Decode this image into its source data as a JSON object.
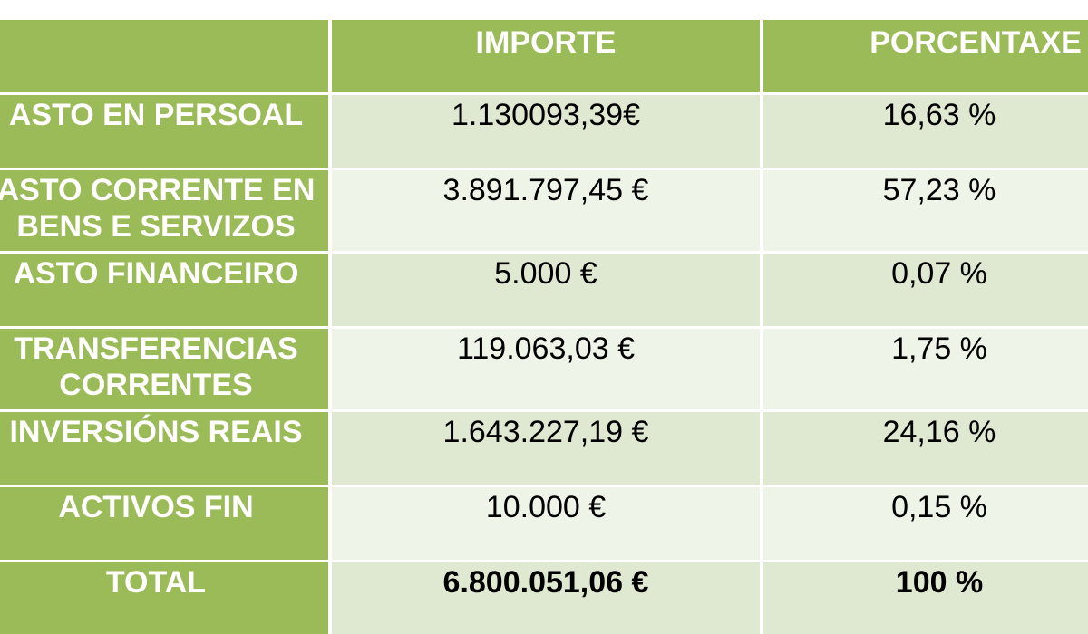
{
  "header": {
    "col1": "",
    "col2": "IMPORTE",
    "col3": "PORCENTAXE"
  },
  "rows": [
    {
      "label_line1": "ASTO EN PERSOAL",
      "label_line2": "",
      "importe": "1.130093,39€",
      "porcentaxe": "16,63 %"
    },
    {
      "label_line1": "ASTO CORRENTE EN",
      "label_line2": "BENS E SERVIZOS",
      "importe": "3.891.797,45 €",
      "porcentaxe": "57,23 %"
    },
    {
      "label_line1": "ASTO FINANCEIRO",
      "label_line2": "",
      "importe": "5.000 €",
      "porcentaxe": "0,07 %"
    },
    {
      "label_line1": "TRANSFERENCIAS",
      "label_line2": "CORRENTES",
      "importe": "119.063,03 €",
      "porcentaxe": "1,75 %"
    },
    {
      "label_line1": "INVERSIÓNS REAIS",
      "label_line2": "",
      "importe": "1.643.227,19 €",
      "porcentaxe": "24,16 %"
    },
    {
      "label_line1": "ACTIVOS FIN",
      "label_line2": "",
      "importe": "10.000 €",
      "porcentaxe": "0,15 %"
    }
  ],
  "total": {
    "label": "TOTAL",
    "importe": "6.800.051,06 €",
    "porcentaxe": "100 %"
  },
  "colors": {
    "header_green": "#9bbb59",
    "row_dark": "#dfe8d0",
    "row_light": "#eff4e9"
  }
}
